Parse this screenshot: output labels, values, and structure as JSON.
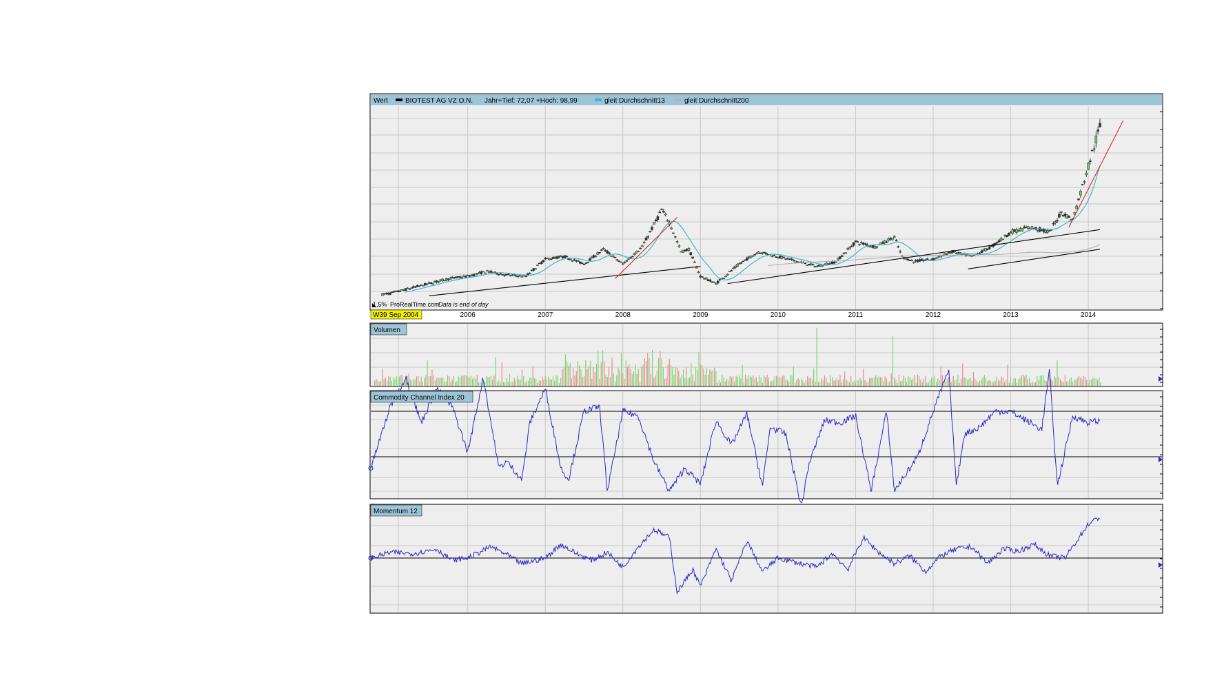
{
  "header": {
    "wert_label": "Wert",
    "instrument": "BIOTEST AG VZ O.N.",
    "range_text": "Jahr+Tief: 72,07 +Hoch: 98,99",
    "ma13_label": "gleit Durchschnitt13",
    "ma200_label": "gleit Durchschnitt200"
  },
  "watermark": {
    "site": "ProRealTime.com",
    "note": "Data is end of day"
  },
  "date_badge": "W39 Sep 2004",
  "panels": {
    "volume_label": "Volumen",
    "cci_label": "Commodity Channel Index 20",
    "momentum_label": "Momentum 12"
  },
  "colors": {
    "header_bg": "#9ec4d8",
    "plot_bg": "#eeeeee",
    "grid": "#c8c8c8",
    "candle_body": "#333333",
    "ma13": "#38b8c8",
    "ma200": "#b4b4b4",
    "trend_red": "#e02020",
    "trend_black": "#000000",
    "indicator_line": "#2828c8",
    "vol_up": "#7ad86a",
    "vol_down": "#e88c8c",
    "date_badge_bg": "#f2f200"
  },
  "chart_data": [
    {
      "type": "line",
      "name": "price",
      "x_ticks": [
        "2006",
        "2007",
        "2008",
        "2009",
        "2010",
        "2011",
        "2012",
        "2013",
        "2014"
      ],
      "grid": true,
      "x": [
        2004.75,
        2005.0,
        2005.25,
        2005.5,
        2005.75,
        2006.0,
        2006.25,
        2006.5,
        2006.75,
        2007.0,
        2007.25,
        2007.5,
        2007.75,
        2008.0,
        2008.25,
        2008.5,
        2008.6,
        2008.75,
        2008.85,
        2009.0,
        2009.2,
        2009.5,
        2009.75,
        2010.0,
        2010.25,
        2010.5,
        2010.75,
        2011.0,
        2011.25,
        2011.5,
        2011.6,
        2011.75,
        2012.0,
        2012.25,
        2012.5,
        2012.75,
        2013.0,
        2013.25,
        2013.5,
        2013.65,
        2013.8,
        2014.0,
        2014.15
      ],
      "values": [
        2,
        4,
        8,
        12,
        16,
        18,
        22,
        19,
        18,
        32,
        34,
        28,
        40,
        28,
        42,
        72,
        62,
        38,
        40,
        18,
        12,
        28,
        38,
        34,
        30,
        26,
        30,
        46,
        42,
        50,
        34,
        30,
        32,
        38,
        34,
        42,
        54,
        58,
        54,
        70,
        64,
        108,
        140
      ],
      "series": [
        {
          "name": "gleit Durchschnitt13"
        },
        {
          "name": "gleit Durchschnitt200"
        }
      ]
    },
    {
      "type": "bar",
      "name": "Volumen"
    },
    {
      "type": "line",
      "name": "Commodity Channel Index 20",
      "x": [
        2004.75,
        2005.0,
        2005.2,
        2005.4,
        2005.6,
        2005.8,
        2006.0,
        2006.2,
        2006.4,
        2006.5,
        2006.7,
        2006.8,
        2007.0,
        2007.2,
        2007.3,
        2007.5,
        2007.7,
        2007.8,
        2008.0,
        2008.2,
        2008.4,
        2008.6,
        2008.8,
        2009.0,
        2009.2,
        2009.4,
        2009.6,
        2009.8,
        2009.9,
        2010.1,
        2010.3,
        2010.4,
        2010.6,
        2010.8,
        2011.0,
        2011.2,
        2011.4,
        2011.5,
        2011.6,
        2011.8,
        2012.0,
        2012.2,
        2012.3,
        2012.4,
        2012.6,
        2012.8,
        2013.0,
        2013.2,
        2013.4,
        2013.5,
        2013.6,
        2013.8,
        2014.0,
        2014.15
      ],
      "values": [
        -150,
        120,
        250,
        50,
        200,
        120,
        -80,
        250,
        -150,
        -120,
        -200,
        50,
        200,
        -150,
        -200,
        100,
        120,
        -250,
        100,
        80,
        -120,
        -250,
        -150,
        -220,
        60,
        -50,
        90,
        -230,
        30,
        0,
        -320,
        -130,
        60,
        50,
        80,
        -250,
        100,
        -250,
        -200,
        -100,
        100,
        280,
        -230,
        0,
        30,
        100,
        100,
        60,
        20,
        280,
        -230,
        80,
        50,
        60
      ]
    },
    {
      "type": "line",
      "name": "Momentum 12",
      "x": [
        2004.75,
        2005.0,
        2005.3,
        2005.6,
        2005.8,
        2006.0,
        2006.3,
        2006.5,
        2006.7,
        2007.0,
        2007.2,
        2007.4,
        2007.6,
        2007.8,
        2008.0,
        2008.2,
        2008.4,
        2008.6,
        2008.7,
        2008.9,
        2009.0,
        2009.2,
        2009.4,
        2009.6,
        2009.8,
        2010.0,
        2010.3,
        2010.5,
        2010.7,
        2010.9,
        2011.1,
        2011.3,
        2011.5,
        2011.7,
        2011.9,
        2012.1,
        2012.3,
        2012.5,
        2012.7,
        2012.9,
        2013.1,
        2013.3,
        2013.5,
        2013.7,
        2013.9,
        2014.0,
        2014.15
      ],
      "values": [
        0,
        5,
        4,
        8,
        -2,
        0,
        10,
        3,
        -5,
        0,
        12,
        4,
        -2,
        5,
        -8,
        10,
        25,
        18,
        -30,
        -10,
        -25,
        8,
        -20,
        15,
        -12,
        0,
        -5,
        -8,
        4,
        -10,
        18,
        5,
        -5,
        2,
        -12,
        2,
        8,
        10,
        -5,
        8,
        6,
        12,
        2,
        0,
        20,
        30,
        36
      ]
    }
  ]
}
